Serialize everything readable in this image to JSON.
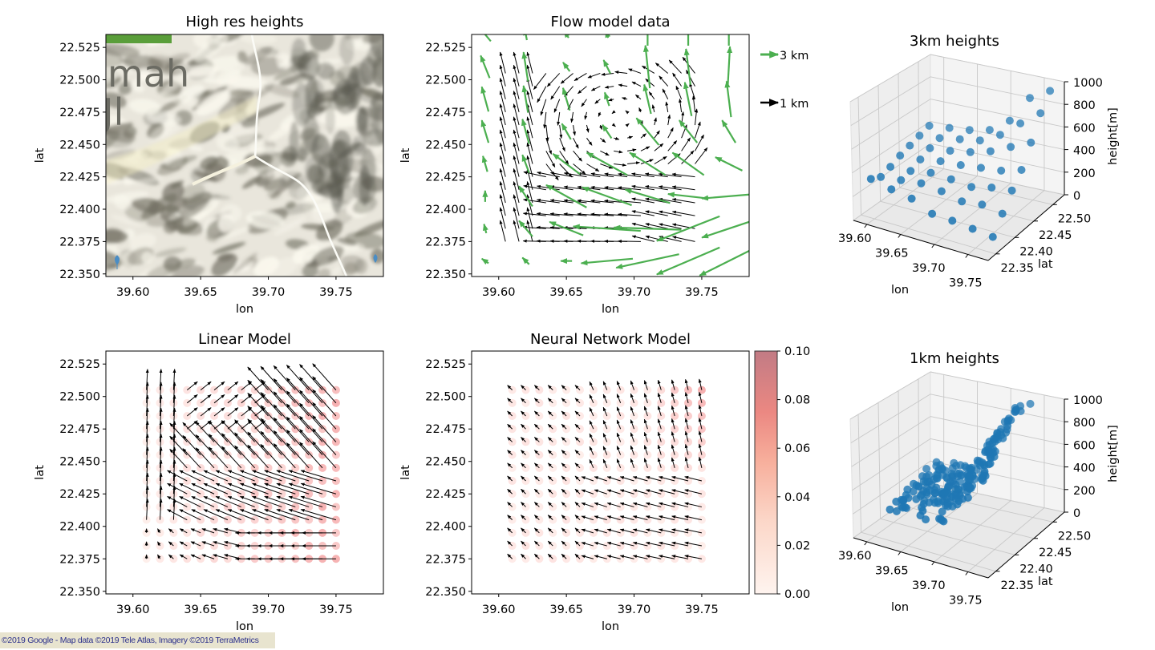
{
  "figure": {
    "attribution": "©2019 Google - Map data ©2019 Tele Atlas, Imagery ©2019 TerraMetrics"
  },
  "chart_data": [
    {
      "id": "high-res-heights",
      "type": "image",
      "title": "High res heights",
      "xlabel": "lon",
      "ylabel": "lat",
      "xlim": [
        39.58,
        39.785
      ],
      "ylim": [
        22.348,
        22.535
      ],
      "xticks": [
        "39.60",
        "39.65",
        "39.70",
        "39.75"
      ],
      "xtick_values": [
        39.6,
        39.65,
        39.7,
        39.75
      ],
      "yticks": [
        "22.350",
        "22.375",
        "22.400",
        "22.425",
        "22.450",
        "22.475",
        "22.500",
        "22.525"
      ],
      "ytick_values": [
        22.35,
        22.375,
        22.4,
        22.425,
        22.45,
        22.475,
        22.5,
        22.525
      ],
      "map_label": "mah\nJl",
      "description": "Satellite terrain map tile"
    },
    {
      "id": "flow-model-data",
      "type": "quiver",
      "title": "Flow model data",
      "xlabel": "lon",
      "ylabel": "lat",
      "xlim": [
        39.58,
        39.785
      ],
      "ylim": [
        22.348,
        22.535
      ],
      "xticks": [
        "39.60",
        "39.65",
        "39.70",
        "39.75"
      ],
      "xtick_values": [
        39.6,
        39.65,
        39.7,
        39.75
      ],
      "yticks": [
        "22.350",
        "22.375",
        "22.400",
        "22.425",
        "22.450",
        "22.475",
        "22.500",
        "22.525"
      ],
      "ytick_values": [
        22.35,
        22.375,
        22.4,
        22.425,
        22.45,
        22.475,
        22.5,
        22.525
      ],
      "legend": [
        {
          "label": "3 km",
          "color": "#4caf50"
        },
        {
          "label": "1 km",
          "color": "#000000"
        }
      ],
      "series": [
        {
          "name": "3 km",
          "color": "#4caf50",
          "grid_x": [
            39.59,
            39.62,
            39.65,
            39.68,
            39.71,
            39.74,
            39.77
          ],
          "grid_y": [
            22.36,
            22.385,
            22.41,
            22.435,
            22.46,
            22.485,
            22.51,
            22.535
          ],
          "u_v_rows": [
            [
              [
                -0.3,
                0.2
              ],
              [
                -0.3,
                0.3
              ],
              [
                -0.5,
                0
              ],
              [
                -2.3,
                -0.2
              ],
              [
                -2.8,
                -0.6
              ],
              [
                -2.8,
                -1.2
              ],
              [
                -2.6,
                -1.3
              ]
            ],
            [
              [
                -0.1,
                0.4
              ],
              [
                -0.6,
                0.7
              ],
              [
                -1.5,
                0.6
              ],
              [
                -3.0,
                0.2
              ],
              [
                -3.0,
                0.1
              ],
              [
                -2.8,
                -1.1
              ],
              [
                -2.4,
                -0.8
              ]
            ],
            [
              [
                0,
                0.5
              ],
              [
                -0.6,
                0.9
              ],
              [
                -1.8,
                1.0
              ],
              [
                -2.2,
                0.8
              ],
              [
                -2.0,
                0.6
              ],
              [
                -1.8,
                0.2
              ],
              [
                -2.4,
                -0.2
              ]
            ],
            [
              [
                -0.2,
                0.7
              ],
              [
                -0.3,
                0.8
              ],
              [
                -1.2,
                0.9
              ],
              [
                -1.8,
                1.0
              ],
              [
                -1.6,
                1.0
              ],
              [
                -1.4,
                1.0
              ],
              [
                -1.2,
                0.6
              ]
            ],
            [
              [
                -0.3,
                1.0
              ],
              [
                -0.3,
                1.1
              ],
              [
                -0.4,
                0.7
              ],
              [
                -0.4,
                0.6
              ],
              [
                -1.0,
                1.2
              ],
              [
                -0.8,
                1.0
              ],
              [
                -0.6,
                1.0
              ]
            ],
            [
              [
                -0.3,
                1.1
              ],
              [
                -0.2,
                1.2
              ],
              [
                -0.3,
                1.0
              ],
              [
                -0.2,
                0.6
              ],
              [
                -0.3,
                1.3
              ],
              [
                -0.3,
                1.5
              ],
              [
                -0.2,
                1.6
              ]
            ],
            [
              [
                -0.4,
                1.0
              ],
              [
                -0.2,
                1.3
              ],
              [
                -0.3,
                0.4
              ],
              [
                -0.3,
                0.6
              ],
              [
                -0.2,
                1.9
              ],
              [
                -0.2,
                1.6
              ],
              [
                0.1,
                1.8
              ]
            ],
            [
              [
                -0.5,
                0.6
              ],
              [
                -0.1,
                0.5
              ],
              [
                -0.2,
                0.3
              ],
              [
                -0.1,
                0.3
              ],
              [
                0,
                1.0
              ],
              [
                0,
                1.0
              ],
              [
                0,
                1.0
              ]
            ]
          ]
        },
        {
          "name": "1 km",
          "color": "#000000",
          "grid_x": [
            39.605,
            39.615,
            39.625,
            39.635,
            39.645,
            39.655,
            39.665,
            39.675,
            39.685,
            39.695,
            39.705,
            39.715,
            39.725,
            39.735,
            39.745
          ],
          "grid_y": [
            22.375,
            22.385,
            22.395,
            22.405,
            22.415,
            22.425,
            22.435,
            22.445,
            22.455,
            22.465,
            22.475,
            22.485,
            22.495,
            22.505
          ],
          "pattern": "cyclonic eddy centered near lon 39.69, lat 22.48; strong westward flow along lat 22.38-22.42"
        }
      ]
    },
    {
      "id": "3km-heights",
      "type": "scatter3d",
      "title": "3km heights",
      "xlabel": "lon",
      "ylabel": "lat",
      "zlabel": "height[m]",
      "xlim": [
        39.58,
        39.78
      ],
      "ylim": [
        22.33,
        22.53
      ],
      "zlim": [
        0,
        1000
      ],
      "xticks": [
        "39.60",
        "39.65",
        "39.70",
        "39.75"
      ],
      "yticks": [
        "22.35",
        "22.40",
        "22.45",
        "22.50"
      ],
      "zticks": [
        "0",
        "200",
        "400",
        "600",
        "800",
        "1000"
      ],
      "color": "#1f77b4",
      "points": [
        [
          39.59,
          22.36,
          300
        ],
        [
          39.62,
          22.36,
          260
        ],
        [
          39.65,
          22.36,
          230
        ],
        [
          39.68,
          22.36,
          150
        ],
        [
          39.71,
          22.36,
          140
        ],
        [
          39.74,
          22.36,
          120
        ],
        [
          39.77,
          22.36,
          100
        ],
        [
          39.59,
          22.385,
          260
        ],
        [
          39.62,
          22.385,
          280
        ],
        [
          39.65,
          22.385,
          300
        ],
        [
          39.68,
          22.385,
          280
        ],
        [
          39.71,
          22.385,
          240
        ],
        [
          39.74,
          22.385,
          260
        ],
        [
          39.77,
          22.385,
          230
        ],
        [
          39.59,
          22.41,
          290
        ],
        [
          39.62,
          22.41,
          300
        ],
        [
          39.65,
          22.41,
          330
        ],
        [
          39.68,
          22.41,
          320
        ],
        [
          39.71,
          22.41,
          300
        ],
        [
          39.74,
          22.41,
          340
        ],
        [
          39.77,
          22.41,
          360
        ],
        [
          39.59,
          22.435,
          330
        ],
        [
          39.62,
          22.435,
          340
        ],
        [
          39.65,
          22.435,
          370
        ],
        [
          39.68,
          22.435,
          380
        ],
        [
          39.71,
          22.435,
          400
        ],
        [
          39.74,
          22.435,
          420
        ],
        [
          39.77,
          22.435,
          470
        ],
        [
          39.59,
          22.46,
          360
        ],
        [
          39.62,
          22.46,
          380
        ],
        [
          39.65,
          22.46,
          400
        ],
        [
          39.68,
          22.46,
          430
        ],
        [
          39.71,
          22.46,
          480
        ],
        [
          39.74,
          22.46,
          560
        ],
        [
          39.77,
          22.46,
          640
        ],
        [
          39.59,
          22.485,
          390
        ],
        [
          39.62,
          22.485,
          410
        ],
        [
          39.65,
          22.485,
          440
        ],
        [
          39.68,
          22.485,
          470
        ],
        [
          39.71,
          22.485,
          560
        ],
        [
          39.74,
          22.485,
          700
        ],
        [
          39.77,
          22.485,
          830
        ],
        [
          39.59,
          22.51,
          420
        ],
        [
          39.62,
          22.51,
          440
        ],
        [
          39.65,
          22.51,
          460
        ],
        [
          39.68,
          22.51,
          500
        ],
        [
          39.71,
          22.51,
          620
        ],
        [
          39.74,
          22.51,
          860
        ],
        [
          39.77,
          22.51,
          960
        ]
      ]
    },
    {
      "id": "linear-model",
      "type": "quiver",
      "title": "Linear Model",
      "xlabel": "lon",
      "ylabel": "lat",
      "xlim": [
        39.58,
        39.785
      ],
      "ylim": [
        22.348,
        22.535
      ],
      "xticks": [
        "39.60",
        "39.65",
        "39.70",
        "39.75"
      ],
      "xtick_values": [
        39.6,
        39.65,
        39.7,
        39.75
      ],
      "yticks": [
        "22.350",
        "22.375",
        "22.400",
        "22.425",
        "22.450",
        "22.475",
        "22.500",
        "22.525"
      ],
      "ytick_values": [
        22.35,
        22.375,
        22.4,
        22.425,
        22.45,
        22.475,
        22.5,
        22.525
      ],
      "grid_x_range": [
        39.61,
        39.75
      ],
      "grid_y_range": [
        22.375,
        22.505
      ],
      "grid_n": [
        15,
        14
      ],
      "error_colormap": "Reds",
      "error_range": [
        0,
        0.1
      ]
    },
    {
      "id": "neural-network-model",
      "type": "quiver",
      "title": "Neural Network Model",
      "xlabel": "lon",
      "ylabel": "lat",
      "xlim": [
        39.58,
        39.785
      ],
      "ylim": [
        22.348,
        22.535
      ],
      "xticks": [
        "39.60",
        "39.65",
        "39.70",
        "39.75"
      ],
      "xtick_values": [
        39.6,
        39.65,
        39.7,
        39.75
      ],
      "yticks": [
        "22.350",
        "22.375",
        "22.400",
        "22.425",
        "22.450",
        "22.475",
        "22.500",
        "22.525"
      ],
      "ytick_values": [
        22.35,
        22.375,
        22.4,
        22.425,
        22.45,
        22.475,
        22.5,
        22.525
      ],
      "grid_x_range": [
        39.61,
        39.75
      ],
      "grid_y_range": [
        22.375,
        22.505
      ],
      "grid_n": [
        15,
        14
      ],
      "colorbar": {
        "ticks": [
          "0.00",
          "0.02",
          "0.04",
          "0.06",
          "0.08",
          "0.10"
        ],
        "tick_values": [
          0,
          0.02,
          0.04,
          0.06,
          0.08,
          0.1
        ],
        "colormap": "Reds",
        "range": [
          0,
          0.1
        ]
      }
    },
    {
      "id": "1km-heights",
      "type": "scatter3d",
      "title": "1km heights",
      "xlabel": "lon",
      "ylabel": "lat",
      "zlabel": "height[m]",
      "xlim": [
        39.58,
        39.78
      ],
      "ylim": [
        22.33,
        22.53
      ],
      "zlim": [
        0,
        1000
      ],
      "xticks": [
        "39.60",
        "39.65",
        "39.70",
        "39.75"
      ],
      "yticks": [
        "22.35",
        "22.40",
        "22.45",
        "22.50"
      ],
      "zticks": [
        "0",
        "200",
        "400",
        "600",
        "800",
        "1000"
      ],
      "color": "#1f77b4",
      "grid_x_range": [
        39.605,
        39.745
      ],
      "grid_y_range": [
        22.375,
        22.505
      ],
      "height_range": [
        120,
        980
      ],
      "point_count": 210
    }
  ]
}
